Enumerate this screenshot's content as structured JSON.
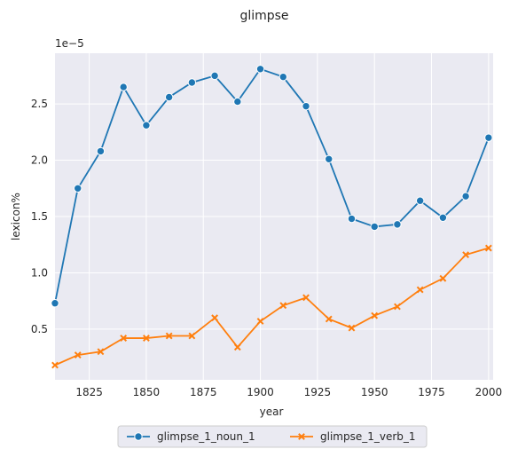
{
  "chart_data": {
    "type": "line",
    "title": "glimpse",
    "xlabel": "year",
    "ylabel": "lexicon%",
    "y_offset_label": "1e−5",
    "x": [
      1810,
      1820,
      1830,
      1840,
      1850,
      1860,
      1870,
      1880,
      1890,
      1900,
      1910,
      1920,
      1930,
      1940,
      1950,
      1960,
      1970,
      1980,
      1990,
      2000
    ],
    "xlim": [
      1810,
      2002
    ],
    "ylim": [
      0.05,
      2.95
    ],
    "xticks": [
      1825,
      1850,
      1875,
      1900,
      1925,
      1950,
      1975,
      2000
    ],
    "yticks": [
      0.5,
      1.0,
      1.5,
      2.0,
      2.5
    ],
    "ytick_labels": [
      "0.5",
      "1.0",
      "1.5",
      "2.0",
      "2.5"
    ],
    "grid": true,
    "legend_placement": "bottom-center",
    "series": [
      {
        "name": "glimpse_1_noun_1",
        "color": "#1f77b4",
        "marker": "circle",
        "values": [
          0.73,
          1.75,
          2.08,
          2.65,
          2.31,
          2.56,
          2.69,
          2.75,
          2.52,
          2.81,
          2.74,
          2.48,
          2.01,
          1.48,
          1.41,
          1.43,
          1.64,
          1.49,
          1.68,
          2.2
        ]
      },
      {
        "name": "glimpse_1_verb_1",
        "color": "#ff7f0e",
        "marker": "x",
        "values": [
          0.18,
          0.27,
          0.3,
          0.42,
          0.42,
          0.44,
          0.44,
          0.6,
          0.34,
          0.57,
          0.71,
          0.78,
          0.59,
          0.51,
          0.62,
          0.7,
          0.85,
          0.95,
          1.16,
          1.22
        ]
      }
    ],
    "colors": {
      "plot_background": "#eaeaf2",
      "grid": "#ffffff",
      "text": "#262626"
    }
  }
}
